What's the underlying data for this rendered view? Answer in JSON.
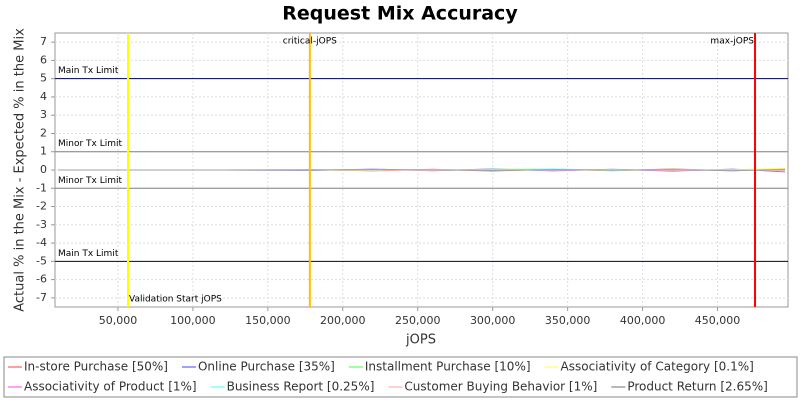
{
  "chart_data": {
    "type": "line",
    "title": "Request Mix Accuracy",
    "x_label": "jOPS",
    "y_label": "Actual % in the Mix - Expected % in the Mix",
    "x": [
      10000,
      60000,
      120000,
      180000,
      220000,
      260000,
      300000,
      340000,
      380000,
      420000,
      460000,
      495000
    ],
    "series": [
      {
        "name": "In-store Purchase [50%]",
        "color": "#ff8080",
        "values": [
          0,
          0,
          0,
          0.02,
          -0.05,
          0.04,
          -0.06,
          0.05,
          -0.04,
          0.06,
          -0.05,
          0.08
        ]
      },
      {
        "name": "Online Purchase [35%]",
        "color": "#8080ff",
        "values": [
          0,
          0,
          0,
          -0.02,
          0.05,
          -0.04,
          0.06,
          -0.05,
          0.04,
          -0.06,
          0.05,
          -0.1
        ]
      },
      {
        "name": "Installment Purchase [10%]",
        "color": "#80ff80",
        "values": [
          0,
          0,
          0,
          0.01,
          0.03,
          -0.03,
          0.04,
          0.05,
          -0.03,
          0.04,
          -0.03,
          0.05
        ]
      },
      {
        "name": "Associativity of Category [0.1%]",
        "color": "#ffff80",
        "values": [
          0,
          0,
          0,
          0,
          -0.02,
          0.02,
          -0.01,
          0.02,
          -0.02,
          0.01,
          0.02,
          0.1
        ]
      },
      {
        "name": "Associativity of Product [1%]",
        "color": "#ff80ff",
        "values": [
          0,
          0,
          0,
          0,
          0.02,
          -0.02,
          0.03,
          -0.02,
          0.02,
          -0.03,
          0.02,
          -0.03
        ]
      },
      {
        "name": "Business Report [0.25%]",
        "color": "#80ffff",
        "values": [
          0,
          0,
          0,
          0,
          -0.01,
          0.03,
          -0.02,
          0.06,
          -0.02,
          0.03,
          -0.02,
          0.02
        ]
      },
      {
        "name": "Customer Buying Behavior [1%]",
        "color": "#ffc0c0",
        "values": [
          0,
          0,
          0,
          0,
          0.01,
          -0.02,
          0.02,
          -0.01,
          0.03,
          -0.02,
          0.01,
          -0.02
        ]
      },
      {
        "name": "Product Return [2.65%]",
        "color": "#a0a0a0",
        "values": [
          0,
          0,
          0,
          -0.01,
          0.02,
          0.01,
          -0.03,
          0.02,
          -0.01,
          0.02,
          -0.04,
          0.03
        ]
      }
    ],
    "hlines": [
      {
        "value": 5,
        "label": "Main Tx Limit",
        "color": "#000050"
      },
      {
        "value": 1,
        "label": "Minor Tx Limit",
        "color": "#808080"
      },
      {
        "value": -1,
        "label": "Minor Tx Limit",
        "color": "#808080"
      },
      {
        "value": -5,
        "label": "Main Tx Limit",
        "color": "#000050"
      }
    ],
    "vlines": [
      {
        "value": 56700,
        "label": "Validation Start jOPS",
        "color": "#ffff00"
      },
      {
        "value": 178000,
        "label": "critical-jOPS",
        "color": "#ffc000"
      },
      {
        "value": 475000,
        "label": "max-jOPS",
        "color": "#ff0000"
      }
    ],
    "xlim": [
      8000,
      497000
    ],
    "ylim": [
      -7.5,
      7.5
    ],
    "xticks": [
      {
        "value": 50000,
        "label": "50,000"
      },
      {
        "value": 100000,
        "label": "100,000"
      },
      {
        "value": 150000,
        "label": "150,000"
      },
      {
        "value": 200000,
        "label": "200,000"
      },
      {
        "value": 250000,
        "label": "250,000"
      },
      {
        "value": 300000,
        "label": "300,000"
      },
      {
        "value": 350000,
        "label": "350,000"
      },
      {
        "value": 400000,
        "label": "400,000"
      },
      {
        "value": 450000,
        "label": "450,000"
      }
    ],
    "yticks": [
      -7,
      -6,
      -5,
      -4,
      -3,
      -2,
      -1,
      0,
      1,
      2,
      3,
      4,
      5,
      6,
      7
    ],
    "grid": true
  }
}
